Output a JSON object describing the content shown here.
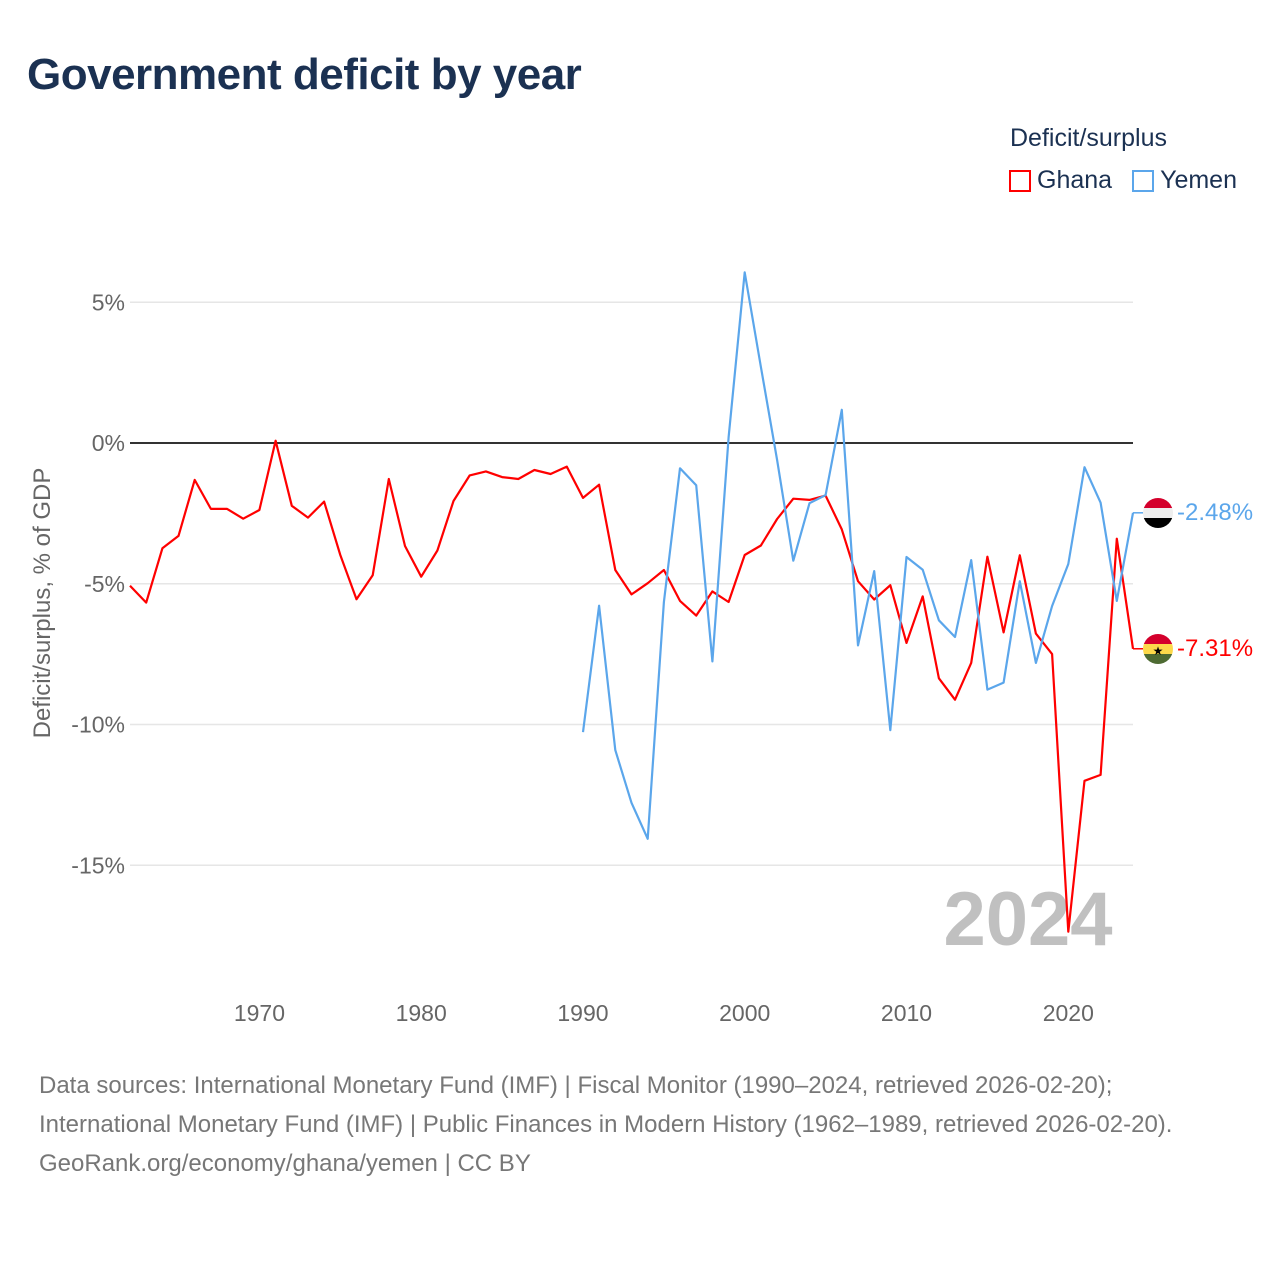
{
  "title": "Government deficit by year",
  "legend": {
    "title": "Deficit/surplus",
    "items": [
      {
        "label": "Ghana",
        "color": "#ff0000"
      },
      {
        "label": "Yemen",
        "color": "#5ba6eb"
      }
    ]
  },
  "year_watermark": "2024",
  "end_labels": {
    "ghana": "-7.31%",
    "yemen": "-2.48%"
  },
  "flags": {
    "ghana": "ghana-flag-icon",
    "yemen": "yemen-flag-icon"
  },
  "footer": {
    "sources": "Data sources: International Monetary Fund (IMF) | Fiscal Monitor (1990–2024, retrieved 2026-02-20); International Monetary Fund (IMF) | Public Finances in Modern History (1962–1989, retrieved 2026-02-20).",
    "credit": "GeoRank.org/economy/ghana/yemen | CC BY"
  },
  "chart_data": {
    "type": "line",
    "title": "Government deficit by year",
    "xlabel": "",
    "ylabel": "Deficit/surplus, % of GDP",
    "xlim": [
      1962,
      2024
    ],
    "ylim": [
      -19.7,
      7.5
    ],
    "x_ticks": [
      1970,
      1980,
      1990,
      2000,
      2010,
      2020
    ],
    "y_ticks": [
      5,
      0,
      -5,
      -10,
      -15
    ],
    "y_tick_labels": [
      "5%",
      "0%",
      "-5%",
      "-10%",
      "-15%"
    ],
    "grid": true,
    "legend_position": "top-right",
    "series": [
      {
        "name": "Ghana",
        "color": "#ff0000",
        "start_year": 1962,
        "values": [
          -5.07,
          -5.67,
          -3.74,
          -3.3,
          -1.31,
          -2.34,
          -2.34,
          -2.69,
          -2.38,
          0.08,
          -2.23,
          -2.65,
          -2.08,
          -3.98,
          -5.55,
          -4.7,
          -1.28,
          -3.66,
          -4.75,
          -3.82,
          -2.06,
          -1.15,
          -1.01,
          -1.21,
          -1.28,
          -0.96,
          -1.1,
          -0.84,
          -1.95,
          -1.48,
          -4.51,
          -5.38,
          -4.98,
          -4.51,
          -5.61,
          -6.13,
          -5.27,
          -5.65,
          -3.98,
          -3.64,
          -2.7,
          -1.98,
          -2.02,
          -1.87,
          -3.07,
          -4.91,
          -5.56,
          -5.05,
          -7.1,
          -5.45,
          -8.36,
          -9.12,
          -7.81,
          -4.04,
          -6.73,
          -3.99,
          -6.77,
          -7.5,
          -17.36,
          -12.0,
          -11.79,
          -3.4,
          -7.31
        ]
      },
      {
        "name": "Yemen",
        "color": "#5ba6eb",
        "start_year": 1990,
        "values": [
          -10.27,
          -5.78,
          -10.91,
          -12.78,
          -14.06,
          -5.65,
          -0.9,
          -1.5,
          -7.76,
          0.2,
          6.06,
          2.7,
          -0.6,
          -4.18,
          -2.14,
          -1.85,
          1.18,
          -7.19,
          -4.55,
          -10.2,
          -4.05,
          -4.5,
          -6.3,
          -6.89,
          -4.16,
          -8.76,
          -8.51,
          -4.91,
          -7.81,
          -5.79,
          -4.3,
          -0.86,
          -2.12,
          -5.61,
          -2.48
        ]
      }
    ]
  }
}
